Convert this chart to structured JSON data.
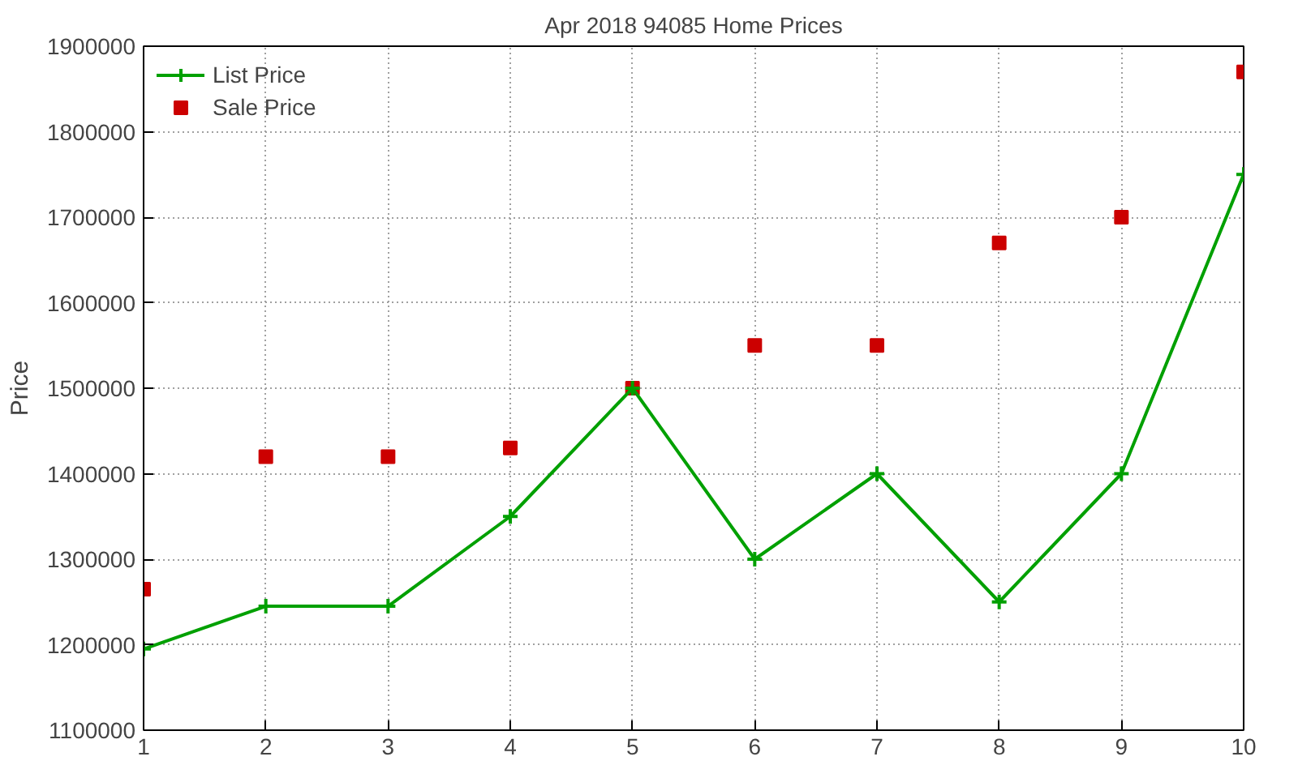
{
  "chart_data": {
    "type": "line",
    "title": "Apr 2018 94085 Home Prices",
    "ylabel": "Price",
    "x": [
      1,
      2,
      3,
      4,
      5,
      6,
      7,
      8,
      9,
      10
    ],
    "series": [
      {
        "name": "List Price",
        "color": "#00a000",
        "marker": "cross",
        "values": [
          1195000,
          1245000,
          1245000,
          1350000,
          1500000,
          1300000,
          1400000,
          1250000,
          1400000,
          1750000
        ]
      },
      {
        "name": "Sale Price",
        "type": "scatter",
        "color": "#cc0000",
        "marker": "square",
        "values": [
          1265000,
          1420000,
          1420000,
          1430000,
          1500000,
          1550000,
          1550000,
          1670000,
          1700000,
          1870000
        ]
      }
    ],
    "xlim": [
      1,
      10
    ],
    "xticks": [
      1,
      2,
      3,
      4,
      5,
      6,
      7,
      8,
      9,
      10
    ],
    "ylim": [
      1100000,
      1900000
    ],
    "yticks": [
      1100000,
      1200000,
      1300000,
      1400000,
      1500000,
      1600000,
      1700000,
      1800000,
      1900000
    ],
    "grid": true,
    "legend": "top left",
    "line_style": "solid"
  }
}
